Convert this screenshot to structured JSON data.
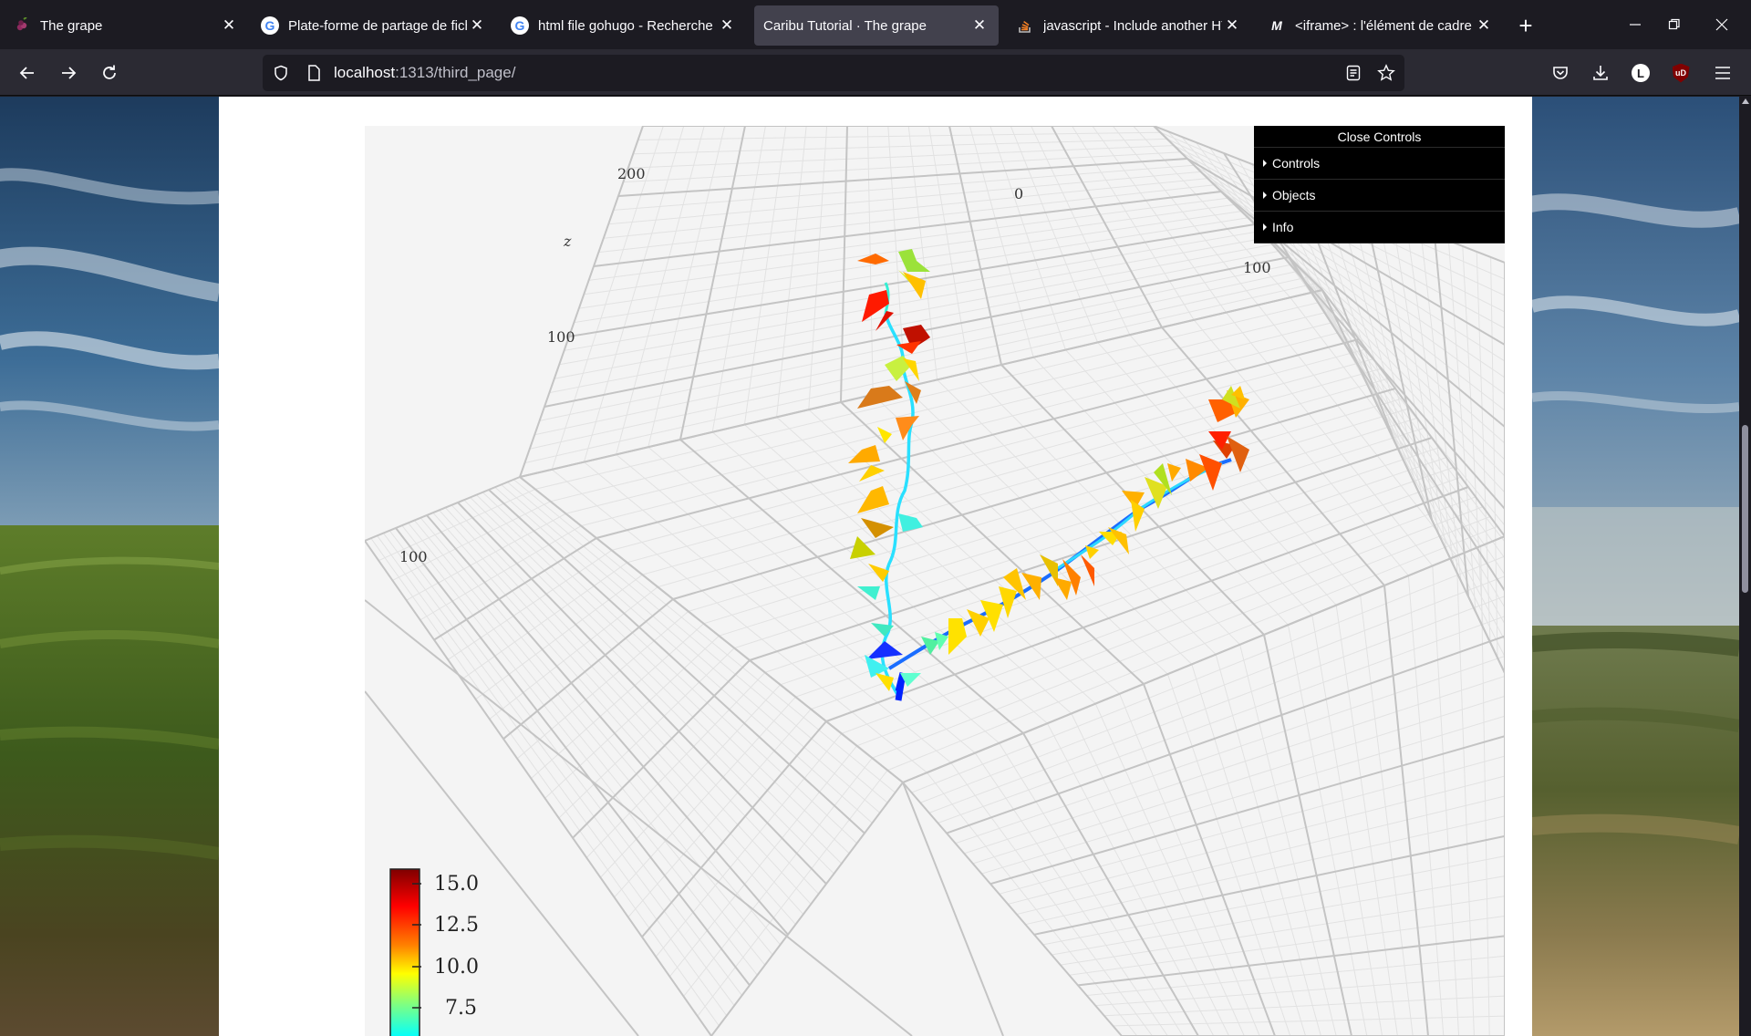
{
  "browser": {
    "tabs": [
      {
        "title": "The grape",
        "favicon": "grape-icon",
        "active": false
      },
      {
        "title": "Plate-forme de partage de fich",
        "favicon": "google-icon",
        "active": false
      },
      {
        "title": "html file gohugo - Recherche G",
        "favicon": "google-icon",
        "active": false
      },
      {
        "title": "Caribu Tutorial · The grape",
        "favicon": "none",
        "active": true
      },
      {
        "title": "javascript - Include another HT",
        "favicon": "stackoverflow-icon",
        "active": false
      },
      {
        "title": "<iframe> : l'élément de cadre i",
        "favicon": "mdn-icon",
        "active": false
      }
    ],
    "url_host": "localhost",
    "url_path": ":1313/third_page/",
    "account_initial": "L",
    "ublock_label": "uD"
  },
  "controls": {
    "close_label": "Close Controls",
    "items": [
      "Controls",
      "Objects",
      "Info"
    ]
  },
  "plot": {
    "axis_ticks": [
      {
        "label": "200"
      },
      {
        "label": "0"
      },
      {
        "label": "100"
      },
      {
        "label": "100"
      },
      {
        "label": "100"
      }
    ],
    "axis_title": "z",
    "colorbar": {
      "ticks": [
        "15.0",
        "12.5",
        "10.0",
        "7.5"
      ],
      "colors": [
        "#7f0000",
        "#ff0000",
        "#ff8000",
        "#ffff00",
        "#80ff80",
        "#00ffff"
      ]
    }
  }
}
